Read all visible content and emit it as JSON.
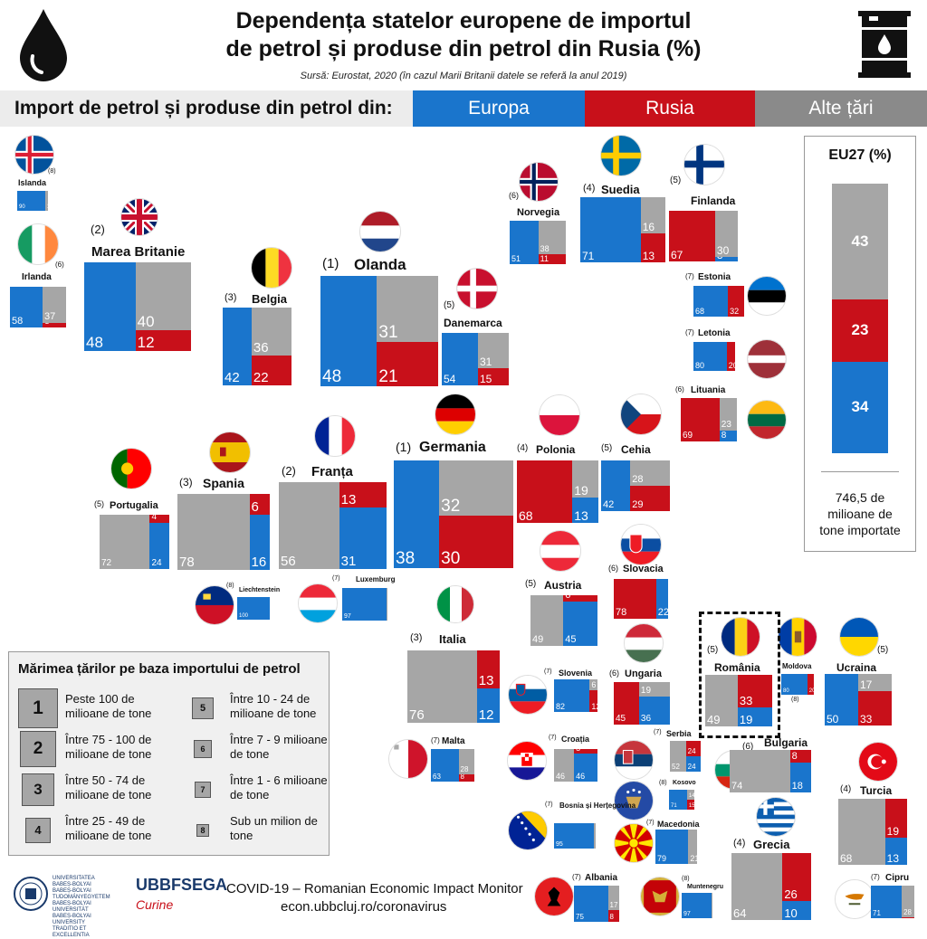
{
  "header": {
    "title_line1": "Dependența statelor europene de importul",
    "title_line2": "de petrol și produse din petrol din Rusia (%)",
    "source": "Sursă: Eurostat, 2020 (în cazul Marii Britanii datele se referă la anul 2019)"
  },
  "legend": {
    "label": "Import de petrol și produse din petrol din:",
    "europa": "Europa",
    "rusia": "Rusia",
    "alte": "Alte țări"
  },
  "colors": {
    "europa": "#1a75cc",
    "rusia": "#c8101a",
    "alte": "#a6a6a6"
  },
  "eu27": {
    "title": "EU27 (%)",
    "alte": 43,
    "rusia": 23,
    "europa": 34,
    "note_line1": "746,5 de",
    "note_line2": "milioane de",
    "note_line3": "tone importate"
  },
  "size_legend": {
    "title": "Mărimea țărilor pe baza importului de petrol",
    "items": [
      {
        "n": "1",
        "line1": "Peste 100 de",
        "line2": "milioane de tone"
      },
      {
        "n": "2",
        "line1": "Între 75 - 100 de",
        "line2": "milioane de tone"
      },
      {
        "n": "3",
        "line1": "Între 50 - 74 de",
        "line2": "milioane de tone"
      },
      {
        "n": "4",
        "line1": "Între 25 - 49 de",
        "line2": "milioane de tone"
      },
      {
        "n": "5",
        "line1": "Între 10 - 24 de",
        "line2": "milioane de tone"
      },
      {
        "n": "6",
        "line1": "Între 7 - 9  milioane",
        "line2": "de tone"
      },
      {
        "n": "7",
        "line1": "Între 1 - 6  milioane",
        "line2": "de tone"
      },
      {
        "n": "8",
        "line1": "Sub un milion de",
        "line2": "tone"
      }
    ]
  },
  "footer": {
    "monitor": "COVID-19 – Romanian Economic Impact Monitor",
    "url": "econ.ubbcluj.ro/coronavirus",
    "fsega": "UBBFSEGA"
  },
  "chart_data": {
    "type": "bar",
    "title": "Dependența statelor europene de importul de petrol și produse din petrol din Rusia (%)",
    "series_names": [
      "Europa",
      "Rusia",
      "Alte țări"
    ],
    "countries": [
      {
        "name": "Islanda",
        "size": 8,
        "europa": 90,
        "rusia": 0,
        "alte": 10
      },
      {
        "name": "Irlanda",
        "size": 6,
        "europa": 58,
        "rusia": 5,
        "alte": 37
      },
      {
        "name": "Marea Britanie",
        "size": 2,
        "europa": 48,
        "rusia": 12,
        "alte": 40
      },
      {
        "name": "Belgia",
        "size": 3,
        "europa": 42,
        "rusia": 22,
        "alte": 36
      },
      {
        "name": "Olanda",
        "size": 1,
        "europa": 48,
        "rusia": 21,
        "alte": 31
      },
      {
        "name": "Danemarca",
        "size": 5,
        "europa": 54,
        "rusia": 15,
        "alte": 31
      },
      {
        "name": "Norvegia",
        "size": 6,
        "europa": 51,
        "rusia": 11,
        "alte": 38
      },
      {
        "name": "Suedia",
        "size": 4,
        "europa": 71,
        "rusia": 13,
        "alte": 16
      },
      {
        "name": "Finlanda",
        "size": 5,
        "europa": 3,
        "rusia": 67,
        "alte": 30
      },
      {
        "name": "Estonia",
        "size": 7,
        "europa": 68,
        "rusia": 32,
        "alte": 0
      },
      {
        "name": "Letonia",
        "size": 7,
        "europa": 80,
        "rusia": 20,
        "alte": 0
      },
      {
        "name": "Lituania",
        "size": 6,
        "europa": 8,
        "rusia": 69,
        "alte": 23
      },
      {
        "name": "Portugalia",
        "size": 5,
        "europa": 24,
        "rusia": 4,
        "alte": 72
      },
      {
        "name": "Spania",
        "size": 3,
        "europa": 16,
        "rusia": 6,
        "alte": 78
      },
      {
        "name": "Franța",
        "size": 2,
        "europa": 31,
        "rusia": 13,
        "alte": 56
      },
      {
        "name": "Germania",
        "size": 1,
        "europa": 38,
        "rusia": 30,
        "alte": 32
      },
      {
        "name": "Polonia",
        "size": 4,
        "europa": 13,
        "rusia": 68,
        "alte": 19
      },
      {
        "name": "Cehia",
        "size": 5,
        "europa": 42,
        "rusia": 29,
        "alte": 28
      },
      {
        "name": "Slovacia",
        "size": 6,
        "europa": 22,
        "rusia": 78,
        "alte": 0
      },
      {
        "name": "Austria",
        "size": 5,
        "europa": 45,
        "rusia": 6,
        "alte": 49
      },
      {
        "name": "Liechtenstein",
        "size": 8,
        "europa": 100,
        "rusia": 0,
        "alte": 0
      },
      {
        "name": "Luxemburg",
        "size": 7,
        "europa": 97,
        "rusia": 0,
        "alte": 3
      },
      {
        "name": "Italia",
        "size": 3,
        "europa": 12,
        "rusia": 13,
        "alte": 76
      },
      {
        "name": "Slovenia",
        "size": 7,
        "europa": 82,
        "rusia": 12,
        "alte": 6
      },
      {
        "name": "Ungaria",
        "size": 6,
        "europa": 36,
        "rusia": 45,
        "alte": 19
      },
      {
        "name": "România",
        "size": 5,
        "europa": 19,
        "rusia": 33,
        "alte": 49
      },
      {
        "name": "Moldova",
        "size": 8,
        "europa": 80,
        "rusia": 20,
        "alte": 0
      },
      {
        "name": "Ucraina",
        "size": 5,
        "europa": 50,
        "rusia": 33,
        "alte": 17
      },
      {
        "name": "Malta",
        "size": 7,
        "europa": 63,
        "rusia": 8,
        "alte": 28
      },
      {
        "name": "Croația",
        "size": 7,
        "europa": 46,
        "rusia": 8,
        "alte": 46
      },
      {
        "name": "Serbia",
        "size": 7,
        "europa": 24,
        "rusia": 24,
        "alte": 52
      },
      {
        "name": "Kosovo",
        "size": 8,
        "europa": 71,
        "rusia": 15,
        "alte": 14
      },
      {
        "name": "Bulgaria",
        "size": 6,
        "europa": 18,
        "rusia": 8,
        "alte": 74
      },
      {
        "name": "Turcia",
        "size": 4,
        "europa": 13,
        "rusia": 19,
        "alte": 68
      },
      {
        "name": "Bosnia și Herțegovina",
        "size": 7,
        "europa": 95,
        "rusia": 0,
        "alte": 5
      },
      {
        "name": "Macedonia",
        "size": 7,
        "europa": 79,
        "rusia": 0,
        "alte": 21
      },
      {
        "name": "Grecia",
        "size": 4,
        "europa": 10,
        "rusia": 26,
        "alte": 64
      },
      {
        "name": "Albania",
        "size": 7,
        "europa": 75,
        "rusia": 8,
        "alte": 17
      },
      {
        "name": "Muntenegru",
        "size": 8,
        "europa": 97,
        "rusia": 0,
        "alte": 3
      },
      {
        "name": "Cipru",
        "size": 7,
        "europa": 71,
        "rusia": 1,
        "alte": 28
      }
    ]
  }
}
